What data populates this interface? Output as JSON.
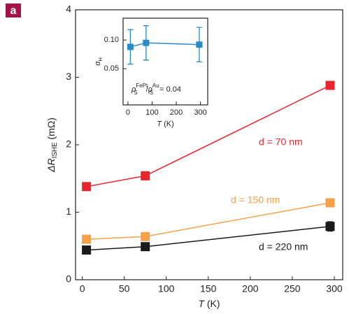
{
  "panel_label": "a",
  "chart_data": [
    {
      "type": "line",
      "x_label": {
        "var": "T",
        "unit": "(K)"
      },
      "y_label": {
        "main": "ΔR",
        "sub": "ISHE",
        "unit": "(mΩ)"
      },
      "xlim": [
        -8,
        310
      ],
      "ylim": [
        0,
        4
      ],
      "xticks": [
        0,
        50,
        100,
        150,
        200,
        250,
        300
      ],
      "yticks": [
        0,
        1,
        2,
        3,
        4
      ],
      "series": [
        {
          "name": "d = 70 nm",
          "color": "#e8262d",
          "x": [
            5,
            75,
            295
          ],
          "values": [
            1.38,
            1.54,
            2.88
          ]
        },
        {
          "name": "d = 150 nm",
          "color": "#f7a04a",
          "x": [
            5,
            75,
            295
          ],
          "values": [
            0.6,
            0.64,
            1.14
          ]
        },
        {
          "name": "d = 220 nm",
          "color": "#1a1a1a",
          "x": [
            5,
            75,
            295
          ],
          "values": [
            0.44,
            0.49,
            0.79
          ],
          "errors": [
            0.05,
            0.04,
            0.07
          ]
        }
      ]
    },
    {
      "type": "line",
      "x_label": {
        "var": "T",
        "unit": "(K)"
      },
      "y_label": {
        "main": "α",
        "sub": "H"
      },
      "annotation": {
        "a": "ρ",
        "a_sub": "S",
        "a_sup": "FePt",
        "slash": "/ρ",
        "b_sub": "S",
        "b_sup": "Au",
        "rest": " = 0.04"
      },
      "xlim": [
        -20,
        330
      ],
      "ylim": [
        -0.013,
        0.138
      ],
      "xticks": [
        0,
        100,
        200,
        300
      ],
      "yticks": [
        {
          "value": 0.05,
          "label": "0.05"
        },
        {
          "value": 0.1,
          "label": "0.10"
        }
      ],
      "series": [
        {
          "color": "#2a8ac6",
          "x": [
            10,
            75,
            295
          ],
          "values": [
            0.088,
            0.095,
            0.092
          ],
          "errors": [
            0.03,
            0.03,
            0.03
          ]
        }
      ]
    }
  ]
}
